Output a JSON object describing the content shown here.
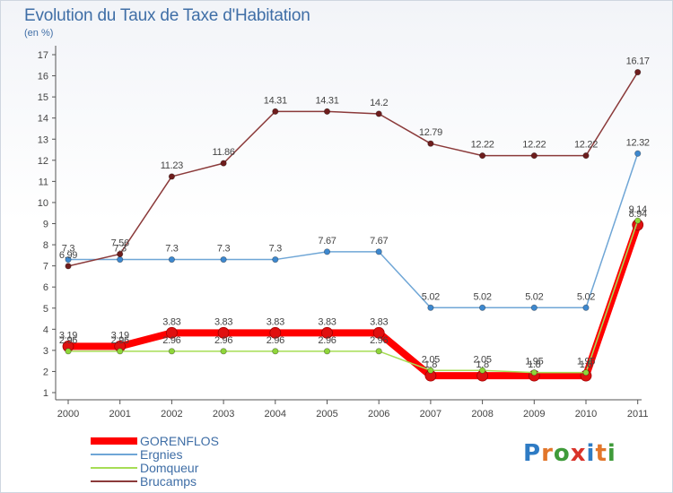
{
  "title": "Evolution du Taux de Taxe d'Habitation",
  "subtitle": "(en %)",
  "logo": {
    "text": "Proxiti",
    "colors": [
      "#2e7bc4",
      "#e2762a",
      "#3f9b3a",
      "#d9332a",
      "#2e7bc4",
      "#e2762a",
      "#3f9b3a"
    ]
  },
  "chart_data": {
    "type": "line",
    "title": "Evolution du Taux de Taxe d'Habitation",
    "ylabel": "(en %)",
    "xlabel": "",
    "x": [
      "2000",
      "2001",
      "2002",
      "2003",
      "2004",
      "2005",
      "2006",
      "2007",
      "2008",
      "2009",
      "2010",
      "2011"
    ],
    "y_ticks": [
      "1",
      "2",
      "3",
      "4",
      "5",
      "6",
      "7",
      "8",
      "9",
      "10",
      "11",
      "12",
      "13",
      "14",
      "15",
      "16",
      "17"
    ],
    "ylim": [
      1,
      17
    ],
    "grid": false,
    "legend_position": "bottom-left",
    "series": [
      {
        "name": "GORENFLOS",
        "color": "#ff0000",
        "marker_color": "#e01010",
        "style": "thick",
        "values": [
          3.19,
          3.19,
          3.83,
          3.83,
          3.83,
          3.83,
          3.83,
          1.8,
          1.8,
          1.8,
          1.8,
          8.94
        ],
        "labels": [
          "3.19",
          "3.19",
          "3.83",
          "3.83",
          "3.83",
          "3.83",
          "3.83",
          "1.8",
          "1.8",
          "1.8",
          "1.8",
          "8.94"
        ]
      },
      {
        "name": "Ergnies",
        "color": "#6fa6d6",
        "marker_color": "#3d88cf",
        "style": "thin",
        "values": [
          7.3,
          7.3,
          7.3,
          7.3,
          7.3,
          7.67,
          7.67,
          5.02,
          5.02,
          5.02,
          5.02,
          12.32
        ],
        "labels": [
          "7.3",
          "7.3",
          "7.3",
          "7.3",
          "7.3",
          "7.67",
          "7.67",
          "5.02",
          "5.02",
          "5.02",
          "5.02",
          "12.32"
        ]
      },
      {
        "name": "Domqueur",
        "color": "#a6dd55",
        "marker_color": "#8fd63a",
        "style": "thin",
        "values": [
          2.96,
          2.96,
          2.96,
          2.96,
          2.96,
          2.96,
          2.96,
          2.05,
          2.05,
          1.95,
          1.95,
          9.14
        ],
        "labels": [
          "2.96",
          "2.96",
          "2.96",
          "2.96",
          "2.96",
          "2.96",
          "2.96",
          "2.05",
          "2.05",
          "1.95",
          "1.95",
          "9.14"
        ]
      },
      {
        "name": "Brucamps",
        "color": "#8b3a3a",
        "marker_color": "#6e1d1d",
        "style": "thin",
        "values": [
          6.99,
          7.56,
          11.23,
          11.86,
          14.31,
          14.31,
          14.2,
          12.79,
          12.22,
          12.22,
          12.22,
          16.17
        ],
        "labels": [
          "6.99",
          "7.56",
          "11.23",
          "11.86",
          "14.31",
          "14.31",
          "14.2",
          "12.79",
          "12.22",
          "12.22",
          "12.22",
          "16.17"
        ]
      }
    ]
  }
}
